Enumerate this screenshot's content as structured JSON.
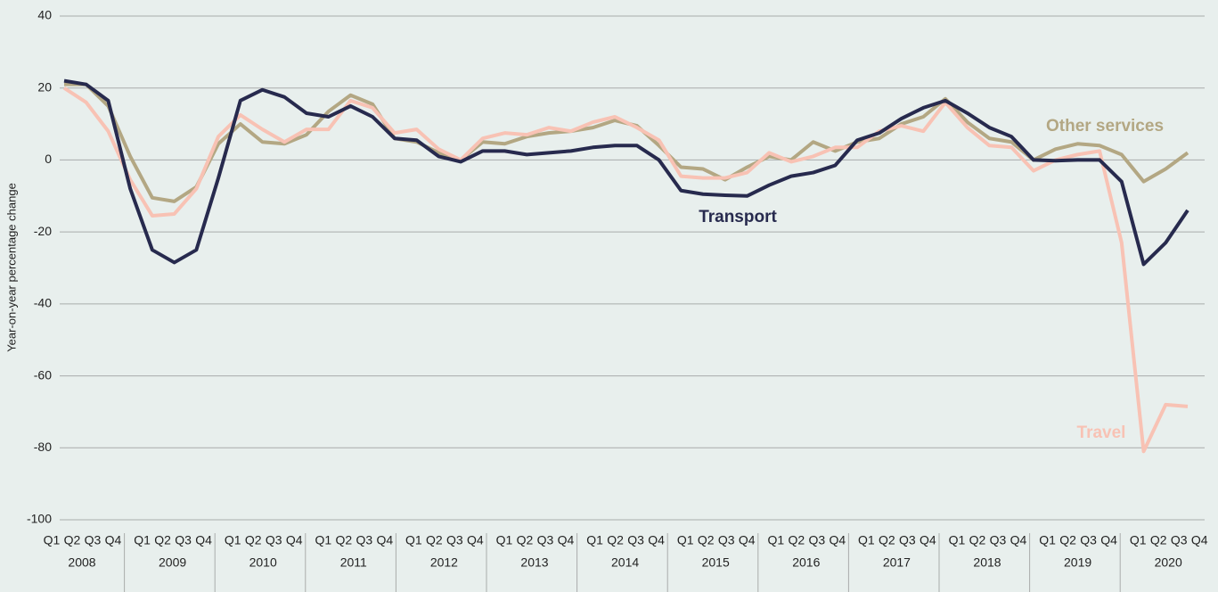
{
  "chart_data": {
    "type": "line",
    "y_label": "Year-on-year percentage change",
    "categories": [
      "Q1",
      "Q2",
      "Q3",
      "Q4",
      "Q1",
      "Q2",
      "Q3",
      "Q4",
      "Q1",
      "Q2",
      "Q3",
      "Q4",
      "Q1",
      "Q2",
      "Q3",
      "Q4",
      "Q1",
      "Q2",
      "Q3",
      "Q4",
      "Q1",
      "Q2",
      "Q3",
      "Q4",
      "Q1",
      "Q2",
      "Q3",
      "Q4",
      "Q1",
      "Q2",
      "Q3",
      "Q4",
      "Q1",
      "Q2",
      "Q3",
      "Q4",
      "Q1",
      "Q2",
      "Q3",
      "Q4",
      "Q1",
      "Q2",
      "Q3",
      "Q4",
      "Q1",
      "Q2",
      "Q3",
      "Q4",
      "Q1",
      "Q2",
      "Q3",
      "Q4"
    ],
    "years": [
      "2008",
      "2009",
      "2010",
      "2011",
      "2012",
      "2013",
      "2014",
      "2015",
      "2016",
      "2017",
      "2018",
      "2019",
      "2020"
    ],
    "series": [
      {
        "name": "Other services",
        "color": "#b3a783",
        "values": [
          21,
          21,
          15,
          1,
          -10.5,
          -11.5,
          -7.5,
          4.5,
          10,
          5,
          4.5,
          7,
          13.5,
          18,
          15.5,
          6,
          5,
          2,
          0,
          5,
          4.5,
          6.5,
          7.5,
          8,
          9,
          11,
          9.5,
          4,
          -2,
          -2.5,
          -5.5,
          -2,
          1,
          0,
          5,
          2.5,
          5,
          6,
          10,
          12,
          17,
          10.5,
          6,
          5,
          0,
          3,
          4.5,
          4,
          1.5,
          -6,
          -2.5,
          2
        ]
      },
      {
        "name": "Travel",
        "color": "#f8c2b4",
        "values": [
          20,
          16,
          8,
          -5.5,
          -15.5,
          -15,
          -8,
          6.5,
          12.5,
          8.5,
          5,
          8.5,
          8.5,
          16.5,
          14.5,
          7.5,
          8.5,
          3,
          0,
          6,
          7.5,
          7,
          9,
          8,
          10.5,
          12,
          9,
          5.5,
          -4.5,
          -5,
          -5,
          -3.5,
          2,
          -0.5,
          1,
          3.5,
          3.5,
          8,
          9.5,
          8,
          16,
          9,
          4,
          3.5,
          -3,
          0,
          1.5,
          2.5,
          -23,
          -81,
          -68,
          -68.5
        ]
      },
      {
        "name": "Transport",
        "color": "#272a4e",
        "values": [
          22,
          21,
          16.5,
          -8,
          -25,
          -28.5,
          -25,
          -5,
          16.5,
          19.5,
          17.5,
          13,
          12,
          15,
          12,
          6,
          5.5,
          1,
          -0.5,
          2.5,
          2.5,
          1.5,
          2,
          2.5,
          3.5,
          4,
          4,
          0,
          -8.5,
          -9.5,
          -9.8,
          -10,
          -7,
          -4.5,
          -3.5,
          -1.5,
          5.5,
          7.5,
          11.5,
          14.5,
          16.5,
          13,
          9,
          6.5,
          0,
          -0.2,
          0,
          0,
          -6,
          -29,
          -23,
          -14
        ]
      }
    ],
    "ylim": [
      -100,
      40
    ],
    "yticks": [
      -100,
      -80,
      -60,
      -40,
      -20,
      0,
      20,
      40
    ],
    "grid": true
  }
}
